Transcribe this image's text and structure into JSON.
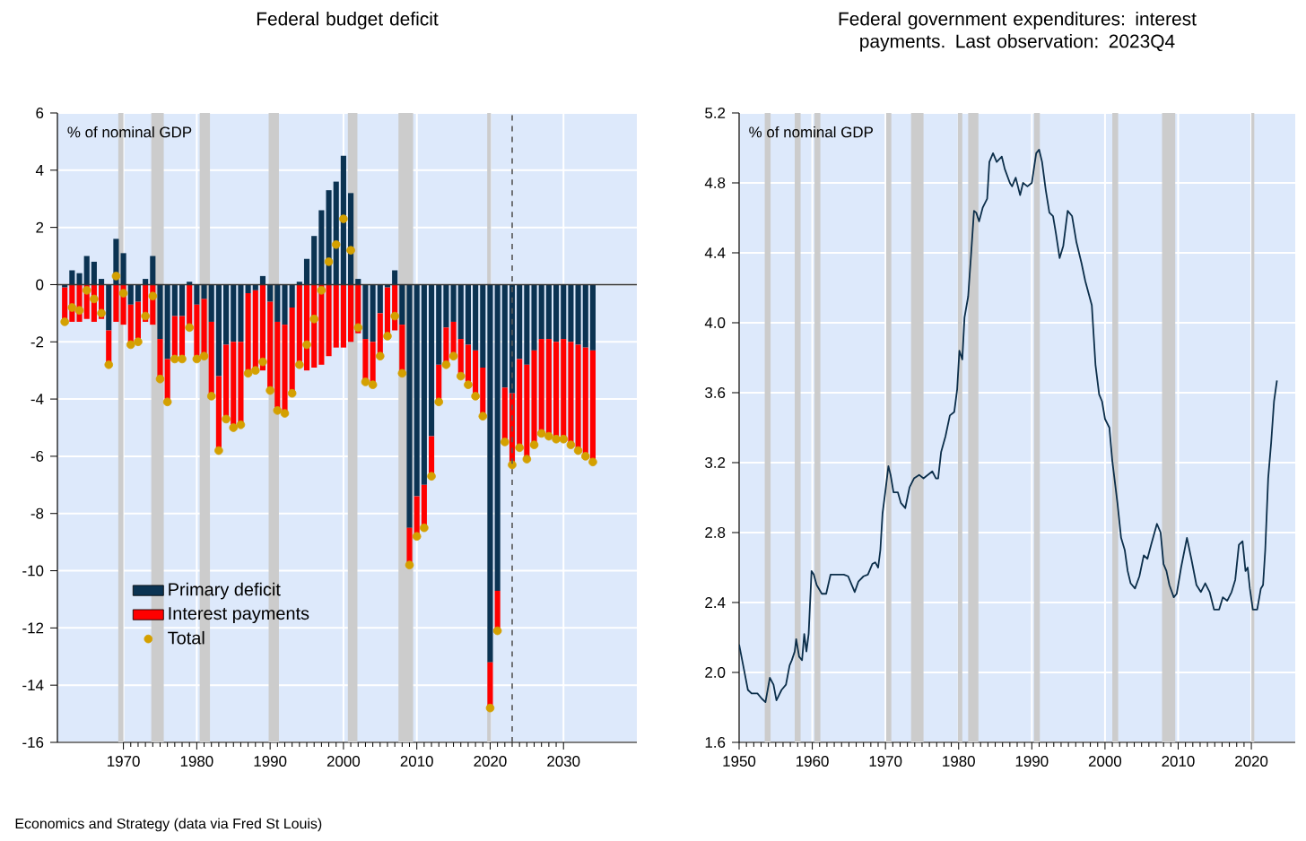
{
  "chart_data": [
    {
      "type": "bar",
      "title": "Federal budget deficit",
      "ylabel": "% of nominal GDP",
      "stacked": true,
      "x": [
        1962,
        1963,
        1964,
        1965,
        1966,
        1967,
        1968,
        1969,
        1970,
        1971,
        1972,
        1973,
        1974,
        1975,
        1976,
        1977,
        1978,
        1979,
        1980,
        1981,
        1982,
        1983,
        1984,
        1985,
        1986,
        1987,
        1988,
        1989,
        1990,
        1991,
        1992,
        1993,
        1994,
        1995,
        1996,
        1997,
        1998,
        1999,
        2000,
        2001,
        2002,
        2003,
        2004,
        2005,
        2006,
        2007,
        2008,
        2009,
        2010,
        2011,
        2012,
        2013,
        2014,
        2015,
        2016,
        2017,
        2018,
        2019,
        2020,
        2021,
        2022,
        2023,
        2024,
        2025,
        2026,
        2027,
        2028,
        2029,
        2030,
        2031,
        2032,
        2033,
        2034
      ],
      "series": [
        {
          "name": "Primary deficit",
          "color": "#0b3352",
          "values": [
            -0.1,
            0.5,
            0.4,
            1.0,
            0.8,
            0.2,
            -1.6,
            1.6,
            1.1,
            -0.7,
            -0.6,
            0.2,
            1.0,
            -1.9,
            -2.6,
            -1.1,
            -1.1,
            0.1,
            -0.7,
            -0.5,
            -1.3,
            -3.2,
            -2.1,
            -2.0,
            -2.0,
            -0.3,
            -0.2,
            0.3,
            -0.6,
            -1.3,
            -1.4,
            -0.8,
            0.1,
            0.9,
            1.7,
            2.6,
            3.3,
            3.6,
            4.5,
            3.2,
            0.2,
            -1.9,
            -2.0,
            -1.0,
            -0.1,
            0.5,
            -1.4,
            -8.5,
            -7.4,
            -7.0,
            -5.3,
            -2.8,
            -1.5,
            -1.3,
            -1.9,
            -2.1,
            -2.3,
            -2.9,
            -13.2,
            -10.7,
            -3.6,
            -3.8,
            -2.6,
            -2.8,
            -2.3,
            -1.9,
            -1.9,
            -2.0,
            -1.9,
            -2.0,
            -2.1,
            -2.2,
            -2.3
          ]
        },
        {
          "name": "Interest payments",
          "color": "#ff0000",
          "values": [
            -1.2,
            -1.3,
            -1.3,
            -1.2,
            -1.3,
            -1.2,
            -1.2,
            -1.3,
            -1.4,
            -1.4,
            -1.4,
            -1.3,
            -1.4,
            -1.4,
            -1.5,
            -1.5,
            -1.5,
            -1.6,
            -1.9,
            -2.0,
            -2.6,
            -2.6,
            -2.6,
            -3.0,
            -2.9,
            -2.8,
            -2.8,
            -3.0,
            -3.1,
            -3.1,
            -3.1,
            -3.0,
            -2.9,
            -3.0,
            -2.9,
            -2.8,
            -2.5,
            -2.2,
            -2.2,
            -2.0,
            -1.7,
            -1.5,
            -1.5,
            -1.5,
            -1.7,
            -1.6,
            -1.7,
            -1.3,
            -1.4,
            -1.5,
            -1.4,
            -1.3,
            -1.3,
            -1.2,
            -1.3,
            -1.4,
            -1.6,
            -1.7,
            -1.6,
            -1.4,
            -1.9,
            -2.5,
            -3.1,
            -3.3,
            -3.3,
            -3.3,
            -3.4,
            -3.4,
            -3.5,
            -3.6,
            -3.7,
            -3.8,
            -3.9
          ]
        },
        {
          "name": "Total",
          "type": "scatter",
          "marker": "circle",
          "color": "#d4a000",
          "values": [
            -1.3,
            -0.8,
            -0.9,
            -0.2,
            -0.5,
            -1.0,
            -2.8,
            0.3,
            -0.3,
            -2.1,
            -2.0,
            -1.1,
            -0.4,
            -3.3,
            -4.1,
            -2.6,
            -2.6,
            -1.5,
            -2.6,
            -2.5,
            -3.9,
            -5.8,
            -4.7,
            -5.0,
            -4.9,
            -3.1,
            -3.0,
            -2.7,
            -3.7,
            -4.4,
            -4.5,
            -3.8,
            -2.8,
            -2.1,
            -1.2,
            -0.2,
            0.8,
            1.4,
            2.3,
            1.2,
            -1.5,
            -3.4,
            -3.5,
            -2.5,
            -1.8,
            -1.1,
            -3.1,
            -9.8,
            -8.8,
            -8.5,
            -6.7,
            -4.1,
            -2.8,
            -2.5,
            -3.2,
            -3.5,
            -3.9,
            -4.6,
            -14.8,
            -12.1,
            -5.5,
            -6.3,
            -5.7,
            -6.1,
            -5.6,
            -5.2,
            -5.3,
            -5.4,
            -5.4,
            -5.6,
            -5.8,
            -6.0,
            -6.2
          ]
        }
      ],
      "xlim": [
        1961,
        2040
      ],
      "xticks": [
        1970,
        1980,
        1990,
        2000,
        2010,
        2020,
        2030
      ],
      "ylim": [
        -16,
        6
      ],
      "yticks": [
        -16,
        -14,
        -12,
        -10,
        -8,
        -6,
        -4,
        -2,
        0,
        2,
        4,
        6
      ],
      "grid": true,
      "legend": "bottom left",
      "ref_lines": [
        {
          "axis": "y",
          "value": 0,
          "color": "#333333",
          "line_style": "solid"
        },
        {
          "axis": "x",
          "value": 2023,
          "color": "#555555",
          "line_style": "dashed"
        }
      ],
      "bands": [
        {
          "axis": "x",
          "from": 1969.3,
          "to": 1970.0,
          "color": "#cccccc"
        },
        {
          "axis": "x",
          "from": 1973.8,
          "to": 1975.5,
          "color": "#cccccc"
        },
        {
          "axis": "x",
          "from": 1980.4,
          "to": 1981.8,
          "color": "#cccccc"
        },
        {
          "axis": "x",
          "from": 1989.8,
          "to": 1991.2,
          "color": "#cccccc"
        },
        {
          "axis": "x",
          "from": 2000.6,
          "to": 2001.9,
          "color": "#cccccc"
        },
        {
          "axis": "x",
          "from": 2007.5,
          "to": 2009.5,
          "color": "#cccccc"
        },
        {
          "axis": "x",
          "from": 2019.6,
          "to": 2020.1,
          "color": "#cccccc"
        }
      ],
      "annotations": [
        "Economics and Strategy (data via Fred St Louis)"
      ]
    },
    {
      "type": "line",
      "title": "Federal government expenditures: interest payments. Last observation: 2023Q4",
      "ylabel": "% of nominal GDP",
      "x": [
        1950,
        1950.65,
        1951.2,
        1951.7,
        1952.5,
        1953.1,
        1953.6,
        1954.2,
        1954.7,
        1955.1,
        1955.8,
        1956.4,
        1956.9,
        1957.2,
        1957.6,
        1957.8,
        1958.2,
        1958.6,
        1958.9,
        1959.2,
        1959.5,
        1959.9,
        1960.2,
        1960.6,
        1961.3,
        1961.9,
        1962.5,
        1963.3,
        1964.3,
        1964.9,
        1965.3,
        1965.8,
        1966.3,
        1967.0,
        1967.6,
        1968.2,
        1968.6,
        1969.0,
        1969.3,
        1969.6,
        1970.0,
        1970.4,
        1970.7,
        1971.1,
        1971.7,
        1972.1,
        1972.7,
        1973.3,
        1973.9,
        1974.6,
        1975.2,
        1976.4,
        1976.9,
        1977.2,
        1977.6,
        1978.2,
        1978.8,
        1979.4,
        1979.8,
        1980.1,
        1980.5,
        1980.8,
        1981.3,
        1981.7,
        1982.1,
        1982.4,
        1982.8,
        1983.3,
        1983.9,
        1984.2,
        1984.7,
        1985.2,
        1985.9,
        1986.3,
        1987.0,
        1987.3,
        1987.8,
        1988.4,
        1988.8,
        1989.4,
        1990.0,
        1990.6,
        1991.0,
        1991.4,
        1991.9,
        1992.4,
        1992.9,
        1993.3,
        1993.8,
        1994.3,
        1994.9,
        1995.5,
        1996.1,
        1996.8,
        1997.3,
        1998.2,
        1998.7,
        1999.2,
        1999.6,
        2000.0,
        2000.6,
        2001.0,
        2001.7,
        2002.2,
        2002.7,
        2003.1,
        2003.5,
        2004.1,
        2004.7,
        2005.3,
        2005.8,
        2006.3,
        2007.1,
        2007.6,
        2008.0,
        2008.4,
        2008.8,
        2009.4,
        2009.8,
        2010.4,
        2011.2,
        2011.8,
        2012.5,
        2013.1,
        2013.7,
        2014.3,
        2014.9,
        2015.6,
        2016.1,
        2016.7,
        2017.3,
        2017.8,
        2018.3,
        2018.8,
        2019.2,
        2019.5,
        2019.8,
        2020.2,
        2020.8,
        2021.3,
        2021.6,
        2021.9,
        2022.3,
        2022.7,
        2023.1,
        2023.5
      ],
      "values": [
        2.16,
        2.02,
        1.9,
        1.88,
        1.88,
        1.85,
        1.83,
        1.97,
        1.93,
        1.84,
        1.9,
        1.93,
        2.04,
        2.07,
        2.12,
        2.19,
        2.09,
        2.07,
        2.22,
        2.12,
        2.22,
        2.58,
        2.56,
        2.5,
        2.45,
        2.45,
        2.56,
        2.56,
        2.56,
        2.55,
        2.51,
        2.46,
        2.52,
        2.55,
        2.56,
        2.62,
        2.63,
        2.6,
        2.7,
        2.91,
        3.04,
        3.18,
        3.13,
        3.03,
        3.03,
        2.97,
        2.94,
        3.06,
        3.11,
        3.13,
        3.11,
        3.15,
        3.11,
        3.11,
        3.26,
        3.35,
        3.47,
        3.49,
        3.62,
        3.84,
        3.79,
        4.03,
        4.15,
        4.39,
        4.64,
        4.63,
        4.58,
        4.66,
        4.71,
        4.92,
        4.97,
        4.92,
        4.95,
        4.88,
        4.8,
        4.78,
        4.83,
        4.73,
        4.8,
        4.78,
        4.8,
        4.97,
        4.99,
        4.92,
        4.76,
        4.63,
        4.61,
        4.51,
        4.37,
        4.44,
        4.64,
        4.61,
        4.46,
        4.34,
        4.24,
        4.1,
        3.76,
        3.59,
        3.55,
        3.45,
        3.4,
        3.21,
        2.97,
        2.77,
        2.7,
        2.58,
        2.51,
        2.48,
        2.55,
        2.67,
        2.65,
        2.73,
        2.85,
        2.8,
        2.62,
        2.58,
        2.5,
        2.43,
        2.45,
        2.6,
        2.77,
        2.65,
        2.5,
        2.46,
        2.51,
        2.46,
        2.36,
        2.36,
        2.43,
        2.41,
        2.46,
        2.53,
        2.73,
        2.75,
        2.58,
        2.6,
        2.48,
        2.36,
        2.36,
        2.48,
        2.5,
        2.7,
        3.11,
        3.31,
        3.55,
        3.67
      ],
      "color": "#0b2e4a",
      "xlim": [
        1950,
        2026
      ],
      "xticks": [
        1950,
        1960,
        1970,
        1980,
        1990,
        2000,
        2010,
        2020
      ],
      "ylim": [
        1.6,
        5.2
      ],
      "yticks": [
        {
          "value": 1.6,
          "label": "1.6"
        },
        {
          "value": 2.0,
          "label": "2.0"
        },
        {
          "value": 2.4,
          "label": "2.4"
        },
        {
          "value": 2.8,
          "label": "2.8"
        },
        {
          "value": 3.2,
          "label": "3.2"
        },
        {
          "value": 3.6,
          "label": "3.6"
        },
        {
          "value": 4.0,
          "label": "4.0"
        },
        {
          "value": 4.4,
          "label": "4.4"
        },
        {
          "value": 4.8,
          "label": "4.8"
        },
        {
          "value": 5.2,
          "label": "5.2"
        }
      ],
      "grid": true,
      "bands": [
        {
          "axis": "x",
          "from": 1953.5,
          "to": 1954.3,
          "color": "#cccccc"
        },
        {
          "axis": "x",
          "from": 1957.6,
          "to": 1958.4,
          "color": "#cccccc"
        },
        {
          "axis": "x",
          "from": 1960.3,
          "to": 1961.1,
          "color": "#cccccc"
        },
        {
          "axis": "x",
          "from": 1970.1,
          "to": 1970.8,
          "color": "#cccccc"
        },
        {
          "axis": "x",
          "from": 1973.5,
          "to": 1975.2,
          "color": "#cccccc"
        },
        {
          "axis": "x",
          "from": 1979.9,
          "to": 1980.5,
          "color": "#cccccc"
        },
        {
          "axis": "x",
          "from": 1981.3,
          "to": 1982.7,
          "color": "#cccccc"
        },
        {
          "axis": "x",
          "from": 1990.3,
          "to": 1991.1,
          "color": "#cccccc"
        },
        {
          "axis": "x",
          "from": 2001.0,
          "to": 2001.8,
          "color": "#cccccc"
        },
        {
          "axis": "x",
          "from": 2007.8,
          "to": 2009.6,
          "color": "#cccccc"
        },
        {
          "axis": "x",
          "from": 2020.0,
          "to": 2020.4,
          "color": "#cccccc"
        }
      ]
    }
  ]
}
